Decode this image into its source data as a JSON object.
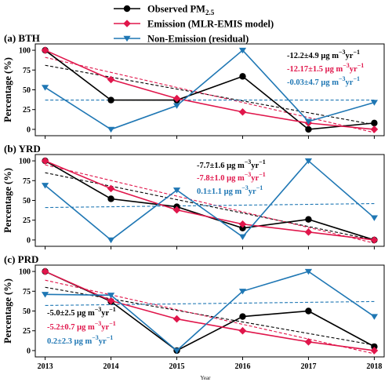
{
  "chart_data": {
    "type": "line",
    "xlabel": "Year",
    "ylabel": "Percentage (%)",
    "x": [
      2013,
      2014,
      2015,
      2016,
      2017,
      2018
    ],
    "xlim": [
      2012.85,
      2018.15
    ],
    "ylim": [
      -8,
      108
    ],
    "yticks": [
      0,
      25,
      50,
      75,
      100
    ],
    "colors": {
      "observed": "#000000",
      "emission": "#e0164b",
      "residual": "#1f77b4"
    },
    "legend": [
      {
        "key": "observed",
        "label": "Observed PM",
        "sub": "2.5",
        "marker": "circle"
      },
      {
        "key": "emission",
        "label": "Emission (MLR-EMIS model)",
        "sub": "",
        "marker": "diamond"
      },
      {
        "key": "residual",
        "label": "Non-Emission (residual)",
        "sub": "",
        "marker": "triangle-down"
      }
    ],
    "panels": [
      {
        "title": "(a) BTH",
        "series": [
          {
            "key": "observed",
            "values": [
              100,
              37,
              37,
              67,
              0,
              8
            ]
          },
          {
            "key": "emission",
            "values": [
              100,
              63,
              39,
              22,
              8,
              0
            ]
          },
          {
            "key": "residual",
            "values": [
              53,
              0,
              30,
              100,
              10,
              34
            ]
          }
        ],
        "trends": [
          {
            "key": "observed",
            "start": 81,
            "end": 6
          },
          {
            "key": "emission",
            "start": 91,
            "end": -4
          },
          {
            "key": "residual",
            "start": 37,
            "end": 37
          }
        ],
        "annotations": [
          {
            "key": "observed",
            "pre": "-12.2±4.9 μg m",
            "sup1": "−3",
            "mid": "yr",
            "sup2": "−1"
          },
          {
            "key": "emission",
            "pre": "-12.17±1.5 μg m",
            "sup1": "−3",
            "mid": "yr",
            "sup2": "−1"
          },
          {
            "key": "residual",
            "pre": "-0.03±4.7 μg m",
            "sup1": "−3",
            "mid": "yr",
            "sup2": "−1"
          }
        ]
      },
      {
        "title": "(b) YRD",
        "series": [
          {
            "key": "observed",
            "values": [
              100,
              52,
              42,
              15,
              26,
              0
            ]
          },
          {
            "key": "emission",
            "values": [
              100,
              65,
              38,
              20,
              10,
              0
            ]
          },
          {
            "key": "residual",
            "values": [
              69,
              0,
              63,
              4,
              100,
              28
            ]
          }
        ],
        "trends": [
          {
            "key": "observed",
            "start": 85,
            "end": 0
          },
          {
            "key": "emission",
            "start": 95,
            "end": -4
          },
          {
            "key": "residual",
            "start": 41,
            "end": 46
          }
        ],
        "annotations": [
          {
            "key": "observed",
            "pre": "-7.7±1.6 μg m",
            "sup1": "−3",
            "mid": "yr",
            "sup2": "−1"
          },
          {
            "key": "emission",
            "pre": "-7.8±1.0 μg m",
            "sup1": "−3",
            "mid": "yr",
            "sup2": "−1"
          },
          {
            "key": "residual",
            "pre": "0.1±1.1 μg m",
            "sup1": "−3",
            "mid": "yr",
            "sup2": "−1"
          }
        ]
      },
      {
        "title": "(c) PRD",
        "series": [
          {
            "key": "observed",
            "values": [
              100,
              62,
              0,
              43,
              50,
              5
            ]
          },
          {
            "key": "emission",
            "values": [
              100,
              63,
              40,
              25,
              11,
              0
            ]
          },
          {
            "key": "residual",
            "values": [
              71,
              70,
              0,
              75,
              100,
              43
            ]
          }
        ],
        "trends": [
          {
            "key": "observed",
            "start": 80,
            "end": 7
          },
          {
            "key": "emission",
            "start": 89,
            "end": -4
          },
          {
            "key": "residual",
            "start": 57,
            "end": 62
          }
        ],
        "annotations": [
          {
            "key": "observed",
            "pre": "-5.0±2.5 μg m",
            "sup1": "−3",
            "mid": "yr",
            "sup2": "−1"
          },
          {
            "key": "emission",
            "pre": "-5.2±0.7 μg m",
            "sup1": "−3",
            "mid": "yr",
            "sup2": "−1"
          },
          {
            "key": "residual",
            "pre": "0.2±2.3 μg m",
            "sup1": "−3",
            "mid": "yr",
            "sup2": "−1"
          }
        ]
      }
    ]
  }
}
